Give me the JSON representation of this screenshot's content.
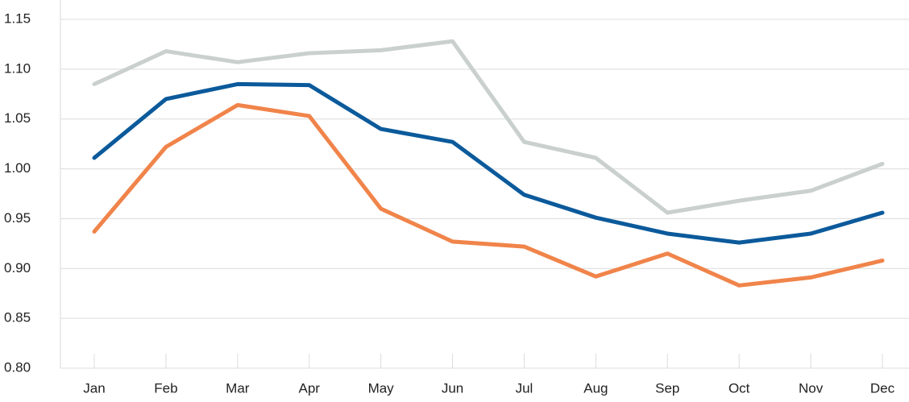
{
  "chart_data": {
    "type": "line",
    "categories": [
      "Jan",
      "Feb",
      "Mar",
      "Apr",
      "May",
      "Jun",
      "Jul",
      "Aug",
      "Sep",
      "Oct",
      "Nov",
      "Dec"
    ],
    "series": [
      {
        "color": "#c9d0cd",
        "values": [
          1.085,
          1.118,
          1.107,
          1.116,
          1.119,
          1.128,
          1.027,
          1.011,
          0.956,
          0.968,
          0.978,
          1.005
        ]
      },
      {
        "color": "#0b5a9b",
        "values": [
          1.011,
          1.07,
          1.085,
          1.084,
          1.04,
          1.027,
          0.974,
          0.951,
          0.935,
          0.926,
          0.935,
          0.956
        ]
      },
      {
        "color": "#f0844a",
        "values": [
          0.937,
          1.022,
          1.064,
          1.053,
          0.96,
          0.927,
          0.922,
          0.892,
          0.915,
          0.883,
          0.891,
          0.908
        ]
      }
    ],
    "ylim": [
      0.8,
      1.15
    ],
    "yticks": [
      {
        "value": 0.8,
        "label": "0.80"
      },
      {
        "value": 0.85,
        "label": "0.85"
      },
      {
        "value": 0.9,
        "label": "0.90"
      },
      {
        "value": 0.95,
        "label": "0.95"
      },
      {
        "value": 1,
        "label": "1.00"
      },
      {
        "value": 1.05,
        "label": "1.05"
      },
      {
        "value": 1.1,
        "label": "1.10"
      },
      {
        "value": 1.15,
        "label": "1.15"
      }
    ],
    "grid": true
  }
}
